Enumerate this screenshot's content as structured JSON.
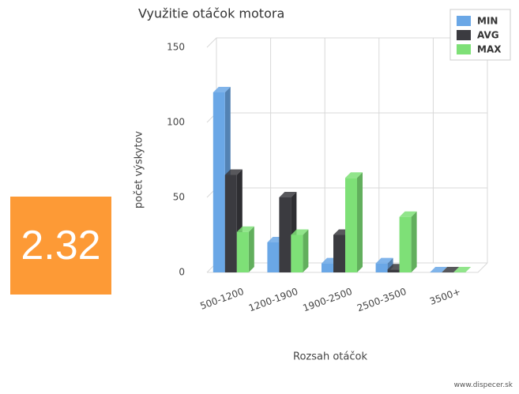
{
  "chart_data": {
    "type": "bar3d",
    "title": "Využitie otáčok motora",
    "x_label": "Rozsah otáčok",
    "y_label": "počet výskytov",
    "categories": [
      "500-1200",
      "1200-1900",
      "1900-2500",
      "2500-3500",
      "3500+"
    ],
    "series": [
      {
        "name": "MIN",
        "color": "#6aa7e6",
        "values": [
          120,
          20,
          6,
          6,
          0
        ]
      },
      {
        "name": "AVG",
        "color": "#3b3b40",
        "values": [
          65,
          50,
          25,
          2,
          0
        ]
      },
      {
        "name": "MAX",
        "color": "#7ee077",
        "values": [
          27,
          25,
          63,
          37,
          0
        ]
      }
    ],
    "ylim": [
      0,
      150
    ],
    "yticks": [
      0,
      50,
      100,
      150
    ],
    "grid": true,
    "legend": "upper right"
  },
  "badge": "2.32",
  "footer": "www.dispecer.sk"
}
